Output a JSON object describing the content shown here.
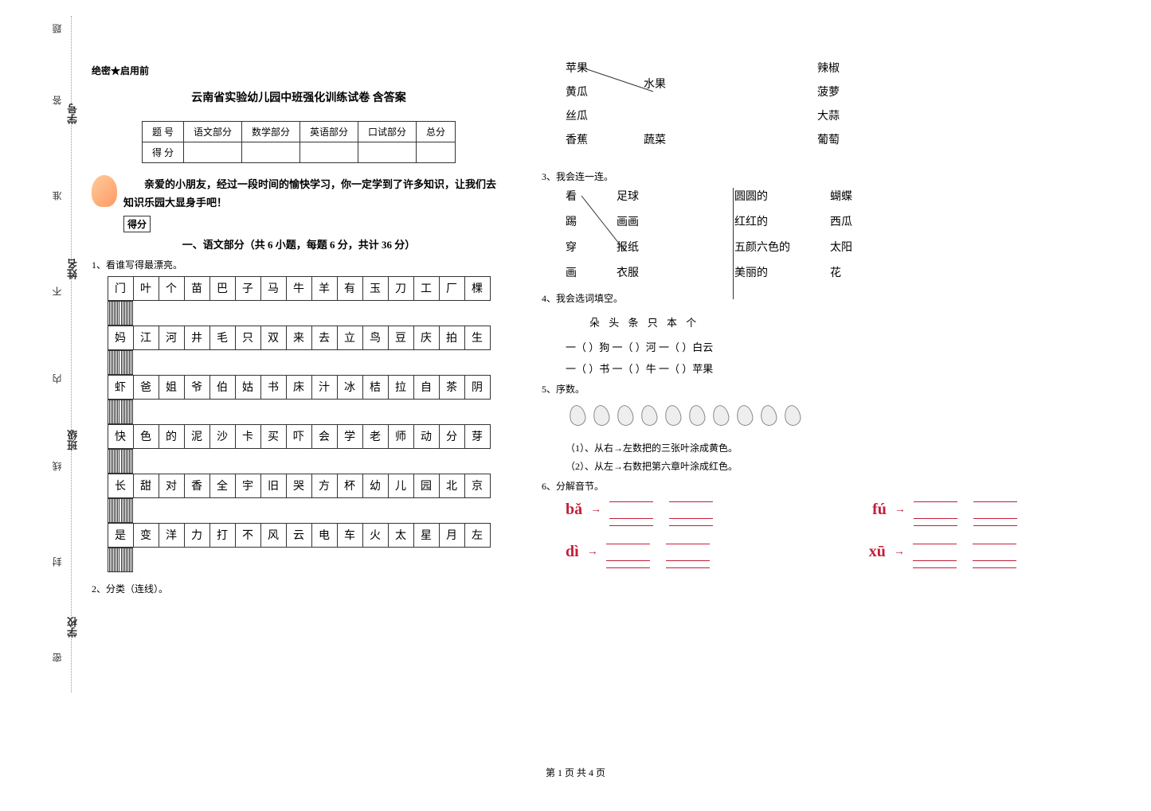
{
  "spine": {
    "labels": [
      "密",
      "封",
      "线",
      "内",
      "不",
      "准",
      "答",
      "题"
    ],
    "fields": [
      "学校",
      "班级",
      "姓名",
      "学号"
    ]
  },
  "header": {
    "secret": "绝密★启用前",
    "title": "云南省实验幼儿园中班强化训练试卷 含答案"
  },
  "score_table": {
    "headers": [
      "题    号",
      "语文部分",
      "数学部分",
      "英语部分",
      "口试部分",
      "总分"
    ],
    "row_label": "得    分"
  },
  "intro": "亲爱的小朋友，经过一段时间的愉快学习，你一定学到了许多知识，让我们去知识乐园大显身手吧！",
  "score_badge": "得分",
  "section1_title": "一、语文部分（共 6 小题，每题 6 分，共计 36 分）",
  "q1": {
    "label": "1、看谁写得最漂亮。",
    "rows": [
      [
        "门",
        "叶",
        "个",
        "苗",
        "巴",
        "子",
        "马",
        "牛",
        "羊",
        "有",
        "玉",
        "刀",
        "工",
        "厂",
        "棵"
      ],
      [
        "妈",
        "江",
        "河",
        "井",
        "毛",
        "只",
        "双",
        "来",
        "去",
        "立",
        "鸟",
        "豆",
        "庆",
        "拍",
        "生"
      ],
      [
        "虾",
        "爸",
        "姐",
        "爷",
        "伯",
        "姑",
        "书",
        "床",
        "汁",
        "冰",
        "桔",
        "拉",
        "自",
        "茶",
        "阴"
      ],
      [
        "快",
        "色",
        "的",
        "泥",
        "沙",
        "卡",
        "买",
        "吓",
        "会",
        "学",
        "老",
        "师",
        "动",
        "分",
        "芽"
      ],
      [
        "长",
        "甜",
        "对",
        "香",
        "全",
        "宇",
        "旧",
        "哭",
        "方",
        "杯",
        "幼",
        "儿",
        "园",
        "北",
        "京"
      ],
      [
        "是",
        "变",
        "洋",
        "力",
        "打",
        "不",
        "风",
        "云",
        "电",
        "车",
        "火",
        "太",
        "星",
        "月",
        "左"
      ]
    ]
  },
  "q2": {
    "label": "2、分类（连线）。",
    "left_col": [
      "苹果",
      "黄瓜",
      "丝瓜",
      "香蕉"
    ],
    "mid_col": [
      "水果",
      "蔬菜"
    ],
    "right_col": [
      "辣椒",
      "菠萝",
      "大蒜",
      "葡萄"
    ],
    "line_color": "#333333"
  },
  "q3": {
    "label": "3、我会连一连。",
    "g1_left": [
      "看",
      "踢",
      "穿",
      "画"
    ],
    "g1_right": [
      "足球",
      "画画",
      "报纸",
      "衣服"
    ],
    "g2_left": [
      "圆圆的",
      "红红的",
      "五颜六色的",
      "美丽的"
    ],
    "g2_right": [
      "蝴蝶",
      "西瓜",
      "太阳",
      "花"
    ],
    "line_color": "#333333"
  },
  "q4": {
    "label": "4、我会选词填空。",
    "words": "朵    头    条    只    本    个",
    "line1": "一（        ）狗        一（        ）河        一（        ）白云",
    "line2": "一（        ）书        一（        ）牛        一（        ）苹果"
  },
  "q5": {
    "label": "5、序数。",
    "sub1": "（1）、从右→左数把的三张叶涂成黄色。",
    "sub2": "（2）、从左→右数把第六章叶涂成红色。",
    "leaf_count": 10
  },
  "q6": {
    "label": "6、分解音节。",
    "items": [
      "bǎ",
      "fú",
      "dì",
      "xū"
    ],
    "color": "#c41e3a"
  },
  "footer": "第 1 页 共 4 页"
}
